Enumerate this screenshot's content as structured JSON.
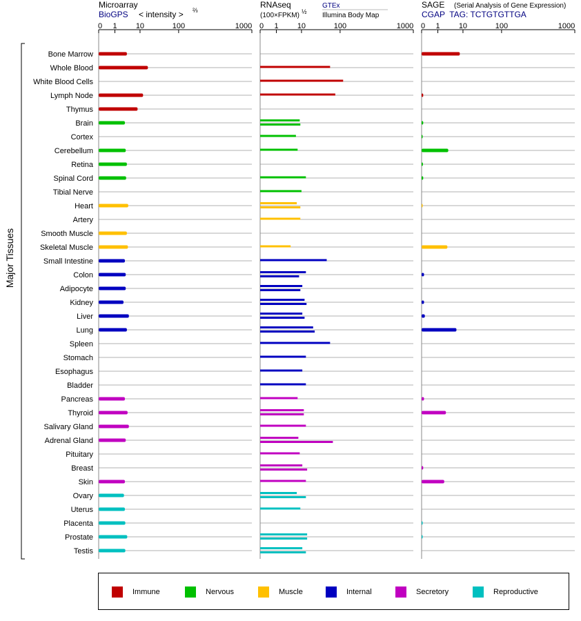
{
  "panels": [
    {
      "id": "microarray",
      "title": "Microarray",
      "subtitle_link": "BioGPS",
      "subtitle_rest": "< intensity >",
      "exponent": "⅔",
      "ticks": [
        "0",
        "1",
        "10",
        "100",
        "1000"
      ]
    },
    {
      "id": "rnaseq",
      "title": "RNAseq",
      "subtitle": "(100×FPKM)",
      "exponent": "½",
      "source_1": "GTEx",
      "source_2": "Illumina Body Map",
      "ticks": [
        "0",
        "1",
        "10",
        "100",
        "1000"
      ]
    },
    {
      "id": "sage",
      "title": "SAGE",
      "title_note": "(Serial Analysis of Gene Expression)",
      "subtitle": "CGAP  TAG: TCTGTGTTGA",
      "ticks": [
        "0",
        "1",
        "10",
        "100",
        "1000"
      ]
    }
  ],
  "group_label": "Major Tissues",
  "legend": [
    {
      "name": "Immune",
      "color": "#c00000"
    },
    {
      "name": "Nervous",
      "color": "#00c000"
    },
    {
      "name": "Muscle",
      "color": "#ffc000"
    },
    {
      "name": "Internal",
      "color": "#0000c0"
    },
    {
      "name": "Secretory",
      "color": "#c000c0"
    },
    {
      "name": "Reproductive",
      "color": "#00c0c0"
    }
  ],
  "chart_data": {
    "type": "bar",
    "orientation": "horizontal",
    "axis_scale": "custom 0 / 1 / 10 / 100 / 1000 (log-like)",
    "xlim": [
      0,
      1000
    ],
    "categories": [
      "Bone Marrow",
      "Whole Blood",
      "White Blood Cells",
      "Lymph Node",
      "Thymus",
      "Brain",
      "Cortex",
      "Cerebellum",
      "Retina",
      "Spinal Cord",
      "Tibial Nerve",
      "Heart",
      "Artery",
      "Smooth Muscle",
      "Skeletal Muscle",
      "Small Intestine",
      "Colon",
      "Adipocyte",
      "Kidney",
      "Liver",
      "Lung",
      "Spleen",
      "Stomach",
      "Esophagus",
      "Bladder",
      "Pancreas",
      "Thyroid",
      "Salivary Gland",
      "Adrenal Gland",
      "Pituitary",
      "Breast",
      "Skin",
      "Ovary",
      "Uterus",
      "Placenta",
      "Prostate",
      "Testis"
    ],
    "category_group": [
      "Immune",
      "Immune",
      "Immune",
      "Immune",
      "Immune",
      "Nervous",
      "Nervous",
      "Nervous",
      "Nervous",
      "Nervous",
      "Nervous",
      "Muscle",
      "Muscle",
      "Muscle",
      "Muscle",
      "Internal",
      "Internal",
      "Internal",
      "Internal",
      "Internal",
      "Internal",
      "Internal",
      "Internal",
      "Internal",
      "Internal",
      "Secretory",
      "Secretory",
      "Secretory",
      "Secretory",
      "Secretory",
      "Secretory",
      "Secretory",
      "Reproductive",
      "Reproductive",
      "Reproductive",
      "Reproductive",
      "Reproductive"
    ],
    "series": [
      {
        "name": "Microarray",
        "values": [
          3,
          16,
          null,
          12,
          8,
          2.5,
          null,
          2.7,
          3,
          2.8,
          null,
          3.4,
          null,
          3,
          3.3,
          2.5,
          2.7,
          2.7,
          2.2,
          3.6,
          3,
          null,
          null,
          null,
          null,
          2.5,
          3.2,
          3.6,
          2.7,
          null,
          null,
          2.5,
          2.3,
          2.5,
          2.6,
          3.1,
          2.6
        ]
      },
      {
        "name": "GTEx",
        "values": [
          null,
          55,
          110,
          75,
          null,
          8.5,
          6,
          7,
          null,
          13,
          10,
          6.5,
          9,
          null,
          3.7,
          45,
          13,
          10.5,
          12,
          10.5,
          20,
          55,
          13,
          10.5,
          13,
          7,
          11.5,
          13,
          7.5,
          8.5,
          10.5,
          13,
          6.5,
          9,
          null,
          14,
          10.5
        ]
      },
      {
        "name": "Illumina Body Map",
        "values": [
          null,
          null,
          null,
          null,
          null,
          9,
          null,
          null,
          null,
          null,
          null,
          9,
          null,
          null,
          null,
          null,
          8,
          9,
          13.5,
          12,
          22,
          null,
          null,
          null,
          null,
          null,
          11.5,
          null,
          65,
          null,
          14,
          null,
          13,
          null,
          null,
          14,
          13
        ]
      },
      {
        "name": "SAGE",
        "values": [
          7.5,
          null,
          null,
          0.1,
          null,
          0.1,
          0.05,
          2.6,
          0.08,
          0.1,
          null,
          0.02,
          null,
          null,
          2.4,
          null,
          0.15,
          null,
          0.15,
          0.2,
          5.5,
          null,
          null,
          null,
          null,
          0.15,
          2.1,
          null,
          null,
          null,
          0.1,
          1.8,
          null,
          null,
          0.05,
          0.05,
          null
        ]
      }
    ]
  }
}
